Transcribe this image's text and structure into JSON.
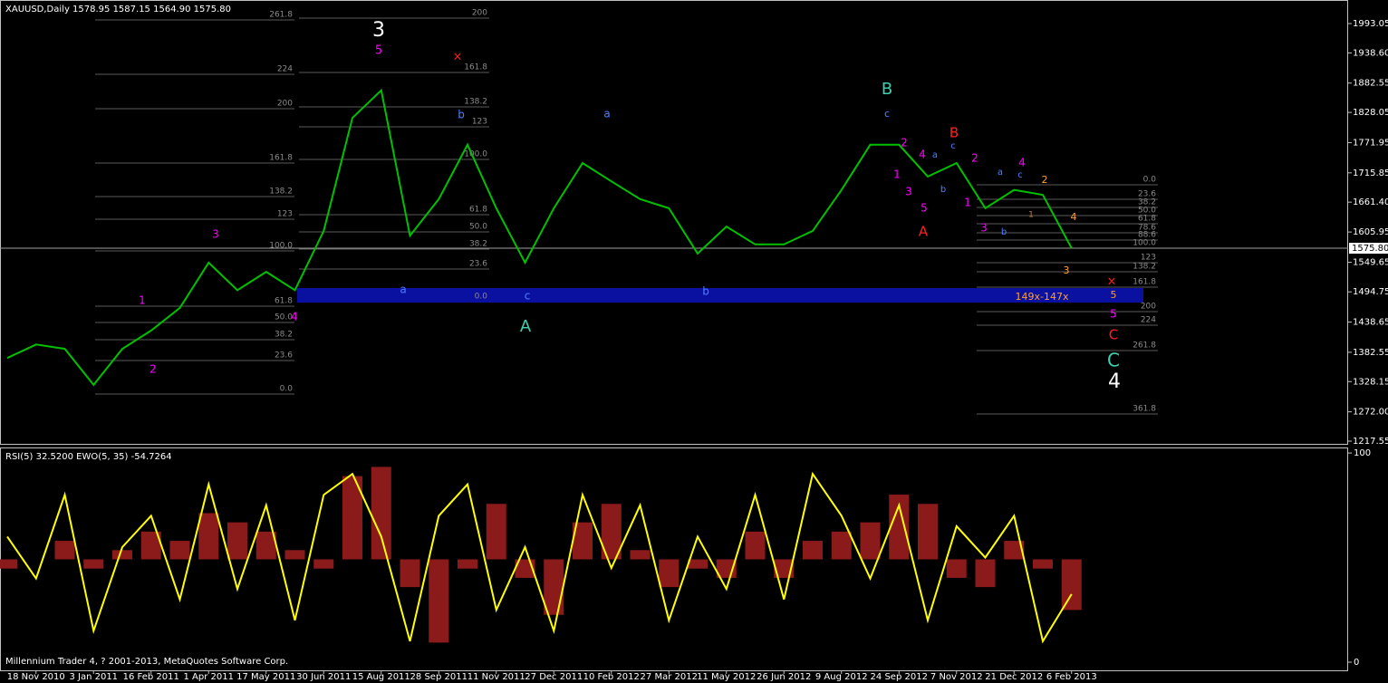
{
  "chart_data": [
    {
      "type": "line",
      "title": "XAUUSD,Daily  1578.95 1587.15 1564.90 1575.80",
      "categories": [
        null,
        "18 Nov 2010",
        null,
        "3 Jan 2011",
        null,
        "16 Feb 2011",
        null,
        "1 Apr 2011",
        null,
        "17 May 2011",
        null,
        "30 Jun 2011",
        null,
        "15 Aug 2011",
        null,
        "28 Sep 2011",
        null,
        "11 Nov 2011",
        null,
        "27 Dec 2011",
        null,
        "10 Feb 2012",
        null,
        "27 Mar 2012",
        null,
        "11 May 2012",
        null,
        "26 Jun 2012",
        null,
        "9 Aug 2012",
        null,
        "24 Sep 2012",
        null,
        "7 Nov 2012",
        null,
        "21 Dec 2012",
        null,
        "6 Feb 2013"
      ],
      "series": [
        {
          "color": "#00c000",
          "values": [
            1372,
            1397,
            1389,
            1322,
            1389,
            1423,
            1465,
            1549,
            1498,
            1532,
            1498,
            1608,
            1818,
            1869,
            1599,
            1667,
            1768,
            1650,
            1549,
            1650,
            1734,
            1700,
            1667,
            1650,
            1566,
            1616,
            1583,
            1583,
            1608,
            1684,
            1768,
            1768,
            1709,
            1734,
            1650,
            1684,
            1675,
            1575.8
          ]
        }
      ],
      "ylim": [
        1212.5,
        2036.8
      ],
      "yticks": [
        1993.05,
        {
          "value": 1938.6,
          "label": "1938.60"
        },
        1882.55,
        1828.05,
        1771.95,
        1715.85,
        {
          "value": 1661.4,
          "label": "1661.40"
        },
        1605.95,
        1549.65,
        1494.75,
        1438.65,
        1382.55,
        1328.15,
        {
          "value": 1272,
          "label": "1272.00"
        },
        1217.55
      ],
      "current_price": {
        "value": 1575.8,
        "label": "1575.80"
      },
      "band_label": "149x-147x",
      "fib_groups": [
        [
          "261.8",
          "224",
          "200",
          "161.8",
          "138.2",
          "123",
          "100.0",
          "61.8",
          "50.0",
          "38.2",
          "23.6",
          "0.0"
        ],
        [
          "200",
          "161.8",
          "138.2",
          "123",
          "100.0",
          "61.8",
          "50.0",
          "38.2",
          "23.6",
          "0.0"
        ],
        [
          "0.0",
          "23.6",
          "38.2",
          "50.0",
          "61.8",
          "78.6",
          "88.6",
          "100.0",
          "123",
          "138.2",
          "161.8",
          "200",
          "224",
          "261.8",
          "361.8"
        ]
      ],
      "annotations": [
        {
          "text": "3",
          "color": "#ffffff"
        },
        {
          "text": "5",
          "color": "#ff00ff"
        },
        {
          "text": "×",
          "color": "#ff2020"
        },
        {
          "text": "b",
          "color": "#4f7fff"
        },
        {
          "text": "a",
          "color": "#4f7fff"
        },
        {
          "text": "B",
          "color": "#40d0b0"
        },
        {
          "text": "c",
          "color": "#4f7fff"
        },
        {
          "text": "B",
          "color": "#ff2020"
        },
        {
          "text": "c",
          "color": "#4f7fff"
        },
        {
          "text": "2",
          "color": "#ff00ff"
        },
        {
          "text": "4",
          "color": "#ff00ff"
        },
        {
          "text": "a",
          "color": "#4f7fff"
        },
        {
          "text": "2",
          "color": "#ff00ff"
        },
        {
          "text": "1",
          "color": "#ff00ff"
        },
        {
          "text": "3",
          "color": "#ff00ff"
        },
        {
          "text": "b",
          "color": "#4f7fff"
        },
        {
          "text": "5",
          "color": "#ff00ff"
        },
        {
          "text": "A",
          "color": "#ff2020"
        },
        {
          "text": "1",
          "color": "#ff00ff"
        },
        {
          "text": "3",
          "color": "#ff00ff"
        },
        {
          "text": "b",
          "color": "#4f7fff"
        },
        {
          "text": "a",
          "color": "#4f7fff"
        },
        {
          "text": "c",
          "color": "#4f7fff"
        },
        {
          "text": "4",
          "color": "#ff00ff"
        },
        {
          "text": "2",
          "color": "#ffa030"
        },
        {
          "text": "4",
          "color": "#ffa030"
        },
        {
          "text": "1",
          "color": "#c08040"
        },
        {
          "text": "3",
          "color": "#ffa030"
        },
        {
          "text": "×",
          "color": "#ff2020"
        },
        {
          "text": "5",
          "color": "#ffa030"
        },
        {
          "text": "5",
          "color": "#ff00ff"
        },
        {
          "text": "C",
          "color": "#ff2020"
        },
        {
          "text": "C",
          "color": "#40d0b0"
        },
        {
          "text": "4",
          "color": "#ffffff"
        },
        {
          "text": "3",
          "color": "#ff00ff"
        },
        {
          "text": "1",
          "color": "#ff00ff"
        },
        {
          "text": "2",
          "color": "#ff00ff"
        },
        {
          "text": "4",
          "color": "#ff00ff"
        },
        {
          "text": "a",
          "color": "#4f7fff"
        },
        {
          "text": "c",
          "color": "#4f7fff"
        },
        {
          "text": "A",
          "color": "#40d0b0"
        },
        {
          "text": "b",
          "color": "#4f7fff"
        }
      ]
    },
    {
      "type": "line",
      "title": "RSI(5) 32.5200  EWO(5, 35) -54.7264",
      "series": [
        {
          "color": "#ffff00",
          "values": [
            60,
            40,
            80,
            15,
            55,
            70,
            30,
            85,
            35,
            75,
            20,
            80,
            90,
            60,
            10,
            70,
            85,
            25,
            55,
            15,
            80,
            45,
            75,
            20,
            60,
            35,
            80,
            30,
            90,
            70,
            40,
            75,
            20,
            65,
            50,
            70,
            10,
            32.52
          ]
        },
        {
          "color": "#8b1a1a",
          "type": "bar",
          "axis": "y2",
          "values": [
            -10,
            0,
            20,
            -10,
            10,
            30,
            20,
            50,
            40,
            30,
            10,
            -10,
            90,
            100,
            -30,
            -90,
            -10,
            60,
            -20,
            -60,
            40,
            60,
            10,
            -30,
            -10,
            -20,
            30,
            -20,
            20,
            30,
            40,
            70,
            60,
            -20,
            -30,
            20,
            -10,
            -54.7264
          ]
        }
      ],
      "ylim": [
        -3.9,
        102.2
      ],
      "yticks": [
        0,
        100
      ],
      "y2lim": [
        -120,
        120
      ]
    }
  ],
  "footer": "Millennium Trader 4, ? 2001-2013, MetaQuotes Software Corp."
}
